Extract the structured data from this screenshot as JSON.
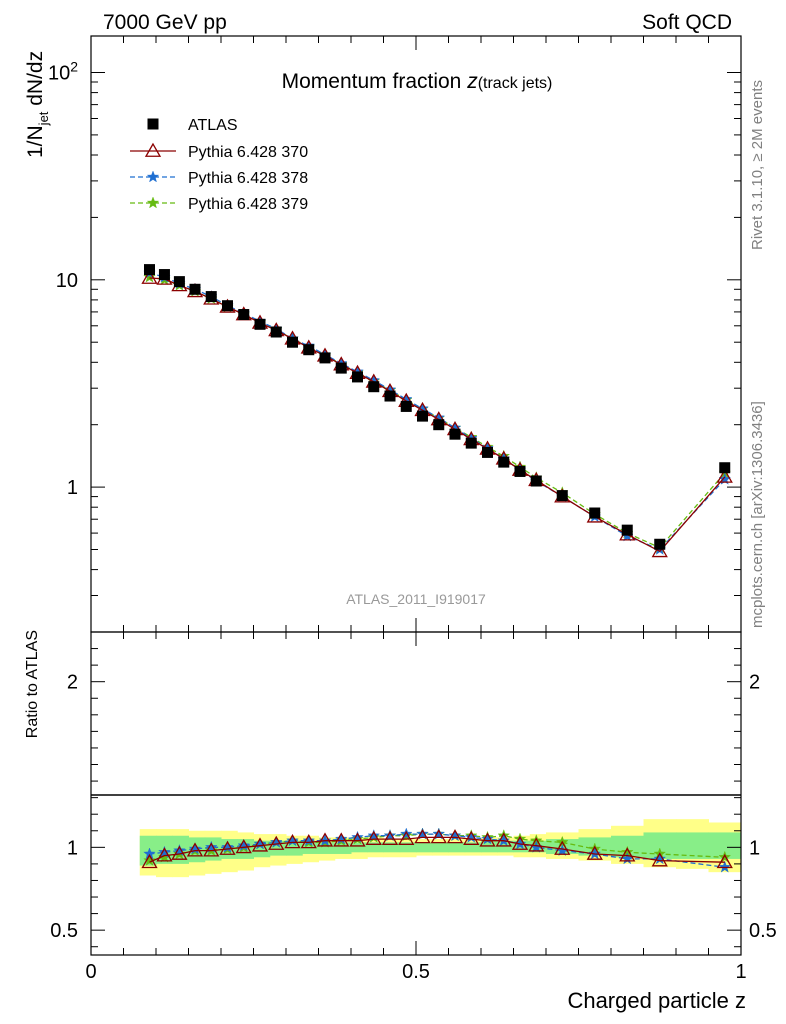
{
  "header": {
    "left": "7000 GeV pp",
    "right": "Soft QCD"
  },
  "title": {
    "main": "Momentum fraction ",
    "italic": "z",
    "sub": "(track jets)"
  },
  "side_labels": {
    "rivet": "Rivet 3.1.10, ≥ 2M events",
    "mcplots": "mcplots.cern.ch [arXiv:1306.3436]"
  },
  "watermark": "ATLAS_2011_I919017",
  "colors": {
    "data": "#000000",
    "p370": "#8b0000",
    "p378": "#1f6fd1",
    "p379": "#66bb11",
    "band_inner": "#88ee88",
    "band_outer": "#ffff88"
  },
  "chart_data": [
    {
      "type": "scatter",
      "panel": "main",
      "ylabel": "1/N_jet dN/dz",
      "yscale": "log",
      "ylim": [
        0.2,
        150
      ],
      "xlim": [
        0,
        1.0
      ],
      "y_ticks": [
        "1",
        "10",
        "10^2"
      ],
      "legend": {
        "placement": "top-left",
        "entries": [
          "ATLAS",
          "Pythia 6.428 370",
          "Pythia 6.428 378",
          "Pythia 6.428 379"
        ]
      },
      "x": [
        0.09,
        0.113,
        0.136,
        0.16,
        0.185,
        0.21,
        0.235,
        0.26,
        0.285,
        0.31,
        0.335,
        0.36,
        0.385,
        0.41,
        0.435,
        0.46,
        0.485,
        0.51,
        0.535,
        0.56,
        0.585,
        0.61,
        0.635,
        0.66,
        0.685,
        0.725,
        0.775,
        0.825,
        0.875,
        0.975
      ],
      "series": [
        {
          "name": "ATLAS",
          "marker": "filled-square",
          "values": [
            11.2,
            10.6,
            9.8,
            9.0,
            8.3,
            7.5,
            6.8,
            6.1,
            5.6,
            5.0,
            4.6,
            4.2,
            3.75,
            3.4,
            3.05,
            2.75,
            2.45,
            2.2,
            2.0,
            1.8,
            1.63,
            1.47,
            1.32,
            1.19,
            1.07,
            0.91,
            0.75,
            0.62,
            0.53,
            1.24
          ]
        },
        {
          "name": "Pythia 6.428 370",
          "marker": "open-triangle",
          "line": "solid",
          "values": [
            10.2,
            10.1,
            9.4,
            8.8,
            8.1,
            7.4,
            6.8,
            6.2,
            5.7,
            5.2,
            4.7,
            4.3,
            3.9,
            3.55,
            3.22,
            2.9,
            2.6,
            2.35,
            2.12,
            1.9,
            1.7,
            1.53,
            1.37,
            1.21,
            1.08,
            0.9,
            0.72,
            0.59,
            0.49,
            1.12
          ]
        },
        {
          "name": "Pythia 6.428 378",
          "marker": "star",
          "line": "dashed",
          "values": [
            10.8,
            10.3,
            9.6,
            9.0,
            8.3,
            7.5,
            6.9,
            6.3,
            5.8,
            5.2,
            4.8,
            4.35,
            3.95,
            3.6,
            3.27,
            2.95,
            2.65,
            2.39,
            2.16,
            1.93,
            1.72,
            1.54,
            1.37,
            1.21,
            1.07,
            0.9,
            0.72,
            0.58,
            0.5,
            1.09
          ]
        },
        {
          "name": "Pythia 6.428 379",
          "marker": "star",
          "line": "dashed",
          "values": [
            10.3,
            10.0,
            9.4,
            8.8,
            8.1,
            7.4,
            6.8,
            6.25,
            5.75,
            5.2,
            4.75,
            4.32,
            3.92,
            3.57,
            3.24,
            2.93,
            2.63,
            2.38,
            2.15,
            1.93,
            1.74,
            1.56,
            1.41,
            1.25,
            1.11,
            0.94,
            0.74,
            0.6,
            0.51,
            1.17
          ]
        }
      ]
    },
    {
      "type": "scatter",
      "panel": "ratio",
      "xlabel": "Charged particle z",
      "ylabel": "Ratio to ATLAS",
      "ylim": [
        0.35,
        2.3
      ],
      "xlim": [
        0,
        1.0
      ],
      "x_ticks": [
        "0",
        "0.5",
        "1"
      ],
      "y_ticks": [
        "0.5",
        "1",
        "2"
      ],
      "x": [
        0.09,
        0.113,
        0.136,
        0.16,
        0.185,
        0.21,
        0.235,
        0.26,
        0.285,
        0.31,
        0.335,
        0.36,
        0.385,
        0.41,
        0.435,
        0.46,
        0.485,
        0.51,
        0.535,
        0.56,
        0.585,
        0.61,
        0.635,
        0.66,
        0.685,
        0.725,
        0.775,
        0.825,
        0.875,
        0.975
      ],
      "bands": {
        "bin_edges": [
          0.075,
          0.1,
          0.125,
          0.15,
          0.175,
          0.2,
          0.225,
          0.25,
          0.275,
          0.3,
          0.325,
          0.35,
          0.375,
          0.4,
          0.425,
          0.45,
          0.475,
          0.5,
          0.525,
          0.55,
          0.575,
          0.6,
          0.625,
          0.65,
          0.675,
          0.7,
          0.75,
          0.8,
          0.85,
          0.9,
          0.95,
          1.0
        ],
        "inner_low": [
          0.89,
          0.9,
          0.9,
          0.91,
          0.92,
          0.93,
          0.93,
          0.94,
          0.95,
          0.95,
          0.96,
          0.96,
          0.96,
          0.97,
          0.97,
          0.97,
          0.97,
          0.97,
          0.97,
          0.97,
          0.97,
          0.97,
          0.97,
          0.97,
          0.97,
          0.96,
          0.95,
          0.94,
          0.93,
          0.93,
          0.93
        ],
        "inner_high": [
          1.07,
          1.07,
          1.07,
          1.06,
          1.06,
          1.05,
          1.05,
          1.04,
          1.04,
          1.04,
          1.03,
          1.03,
          1.03,
          1.03,
          1.03,
          1.03,
          1.03,
          1.03,
          1.03,
          1.03,
          1.03,
          1.04,
          1.04,
          1.04,
          1.04,
          1.05,
          1.06,
          1.07,
          1.09,
          1.09,
          1.09
        ],
        "outer_low": [
          0.83,
          0.82,
          0.82,
          0.83,
          0.84,
          0.85,
          0.86,
          0.88,
          0.89,
          0.9,
          0.91,
          0.92,
          0.93,
          0.93,
          0.94,
          0.94,
          0.94,
          0.95,
          0.95,
          0.95,
          0.95,
          0.95,
          0.95,
          0.94,
          0.94,
          0.93,
          0.92,
          0.9,
          0.88,
          0.87,
          0.85
        ],
        "outer_high": [
          1.11,
          1.11,
          1.11,
          1.1,
          1.1,
          1.1,
          1.09,
          1.08,
          1.08,
          1.07,
          1.07,
          1.06,
          1.06,
          1.06,
          1.06,
          1.05,
          1.05,
          1.05,
          1.05,
          1.05,
          1.05,
          1.06,
          1.06,
          1.07,
          1.08,
          1.09,
          1.11,
          1.13,
          1.17,
          1.17,
          1.15
        ]
      },
      "series": [
        {
          "name": "Pythia 6.428 370",
          "marker": "open-triangle",
          "line": "solid",
          "values": [
            0.91,
            0.95,
            0.96,
            0.98,
            0.98,
            0.99,
            1.0,
            1.01,
            1.02,
            1.03,
            1.03,
            1.04,
            1.04,
            1.04,
            1.05,
            1.05,
            1.05,
            1.06,
            1.06,
            1.06,
            1.05,
            1.04,
            1.04,
            1.02,
            1.01,
            0.99,
            0.96,
            0.95,
            0.92,
            0.91
          ]
        },
        {
          "name": "Pythia 6.428 378",
          "marker": "star",
          "line": "dashed",
          "values": [
            0.96,
            0.97,
            0.98,
            0.99,
            1.0,
            1.0,
            1.01,
            1.02,
            1.03,
            1.04,
            1.04,
            1.04,
            1.05,
            1.06,
            1.07,
            1.07,
            1.08,
            1.08,
            1.08,
            1.07,
            1.06,
            1.05,
            1.04,
            1.02,
            1.0,
            0.98,
            0.96,
            0.93,
            0.93,
            0.88
          ]
        },
        {
          "name": "Pythia 6.428 379",
          "marker": "star",
          "line": "dashed",
          "values": [
            0.92,
            0.94,
            0.96,
            0.98,
            0.98,
            0.99,
            1.0,
            1.02,
            1.03,
            1.04,
            1.03,
            1.03,
            1.04,
            1.05,
            1.06,
            1.07,
            1.07,
            1.08,
            1.08,
            1.07,
            1.07,
            1.06,
            1.07,
            1.05,
            1.04,
            1.03,
            0.99,
            0.97,
            0.96,
            0.94
          ]
        }
      ]
    }
  ]
}
